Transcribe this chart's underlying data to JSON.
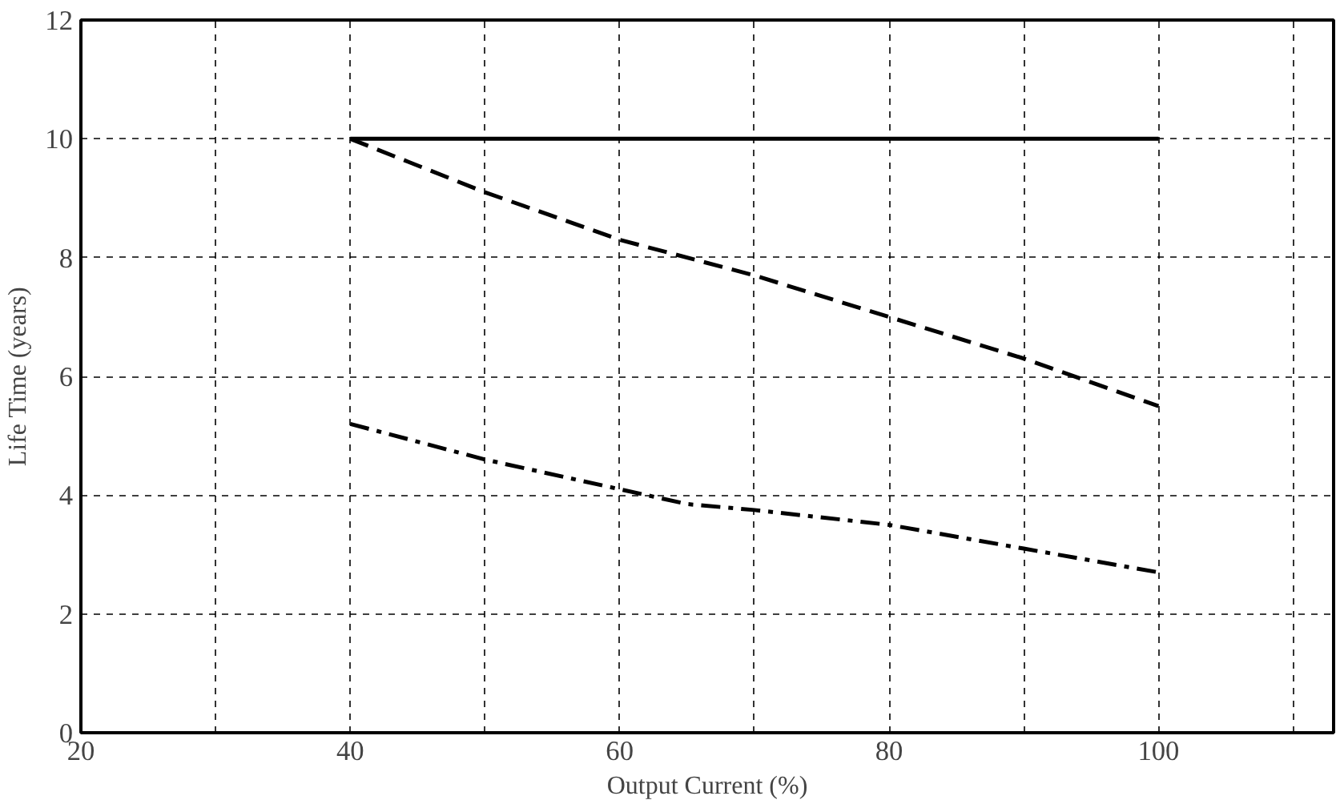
{
  "chart_data": {
    "type": "line",
    "xlabel": "Output Current (%)",
    "ylabel": "Life Time (years)",
    "xlim": [
      20,
      113
    ],
    "xticks": [
      20,
      {
        "value": 30,
        "label": null
      },
      40,
      {
        "value": 50,
        "label": null
      },
      60,
      {
        "value": 70,
        "label": null
      },
      80,
      {
        "value": 90,
        "label": null
      },
      100,
      {
        "value": 110,
        "label": null
      }
    ],
    "ylim": [
      0,
      12
    ],
    "yticks": [
      0,
      2,
      4,
      6,
      8,
      10,
      12
    ],
    "grid": true,
    "series": [
      {
        "color": "#000000",
        "line_style": "solid",
        "x": [
          40,
          100
        ],
        "values": [
          10,
          10
        ]
      },
      {
        "color": "#000000",
        "line_style": "dashed",
        "x": [
          40,
          50,
          60,
          70,
          80,
          90,
          100
        ],
        "values": [
          10,
          9.1,
          8.3,
          7.7,
          7.0,
          6.3,
          5.5
        ]
      },
      {
        "color": "#000000",
        "line_style": "dashdot",
        "x": [
          40,
          50,
          60,
          65,
          70,
          80,
          90,
          100
        ],
        "values": [
          5.2,
          4.6,
          4.1,
          3.85,
          3.75,
          3.5,
          3.1,
          2.7
        ]
      }
    ]
  }
}
